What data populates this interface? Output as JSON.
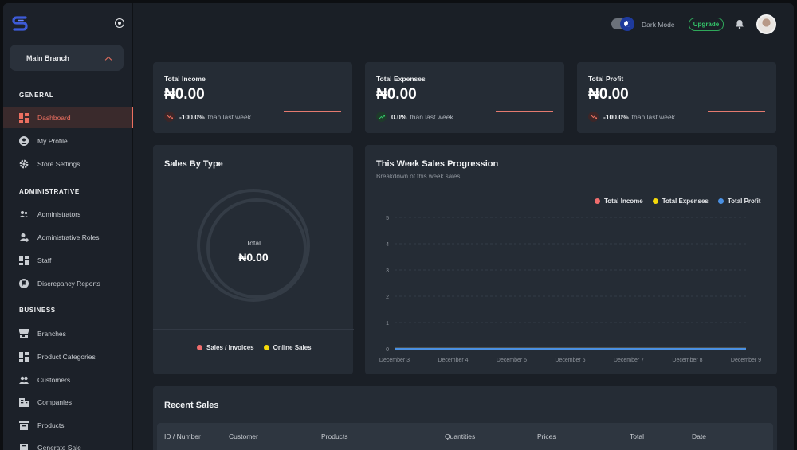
{
  "sidebar": {
    "branch": "Main Branch",
    "sections": [
      {
        "title": "GENERAL",
        "items": [
          {
            "label": "Dashboard",
            "icon": "dashboard-icon",
            "active": true
          },
          {
            "label": "My Profile",
            "icon": "profile-icon"
          },
          {
            "label": "Store Settings",
            "icon": "gear-icon"
          }
        ]
      },
      {
        "title": "ADMINISTRATIVE",
        "items": [
          {
            "label": "Administrators",
            "icon": "users-icon"
          },
          {
            "label": "Administrative Roles",
            "icon": "roles-icon"
          },
          {
            "label": "Staff",
            "icon": "staff-icon"
          },
          {
            "label": "Discrepancy Reports",
            "icon": "report-icon"
          }
        ]
      },
      {
        "title": "BUSINESS",
        "items": [
          {
            "label": "Branches",
            "icon": "store-icon"
          },
          {
            "label": "Product Categories",
            "icon": "categories-icon"
          },
          {
            "label": "Customers",
            "icon": "customers-icon"
          },
          {
            "label": "Companies",
            "icon": "building-icon"
          },
          {
            "label": "Products",
            "icon": "box-icon"
          },
          {
            "label": "Generate Sale",
            "icon": "sale-icon"
          }
        ]
      }
    ]
  },
  "header": {
    "dark_mode_label": "Dark Mode",
    "upgrade_label": "Upgrade"
  },
  "stats": [
    {
      "title": "Total Income",
      "value": "₦0.00",
      "change": "-100.0%",
      "suffix": "than last week",
      "trend": "down"
    },
    {
      "title": "Total Expenses",
      "value": "₦0.00",
      "change": "0.0%",
      "suffix": "than last week",
      "trend": "up"
    },
    {
      "title": "Total Profit",
      "value": "₦0.00",
      "change": "-100.0%",
      "suffix": "than last week",
      "trend": "down"
    }
  ],
  "sales_by_type": {
    "title": "Sales By Type",
    "total_label": "Total",
    "total_value": "₦0.00",
    "legend": [
      {
        "label": "Sales / Invoices",
        "color": "#f06d6d"
      },
      {
        "label": "Online Sales",
        "color": "#f5d90a"
      }
    ]
  },
  "chart_data": {
    "type": "line",
    "title": "This Week Sales Progression",
    "subtitle": "Breakdown of this week sales.",
    "categories": [
      "December 3",
      "December 4",
      "December 5",
      "December 6",
      "December 7",
      "December 8",
      "December 9"
    ],
    "series": [
      {
        "name": "Total Income",
        "color": "#f06d6d",
        "values": [
          0,
          0,
          0,
          0,
          0,
          0,
          0
        ]
      },
      {
        "name": "Total Expenses",
        "color": "#f5d90a",
        "values": [
          0,
          0,
          0,
          0,
          0,
          0,
          0
        ]
      },
      {
        "name": "Total Profit",
        "color": "#4a90e2",
        "values": [
          0,
          0,
          0,
          0,
          0,
          0,
          0
        ]
      }
    ],
    "yticks": [
      "0",
      "1",
      "2",
      "3",
      "4",
      "5"
    ],
    "ylim": [
      0,
      5
    ],
    "grid": true,
    "legend": "top-right"
  },
  "recent_sales": {
    "title": "Recent Sales",
    "columns": [
      "ID / Number",
      "Customer",
      "Products",
      "Quantities",
      "Prices",
      "Total",
      "Date"
    ]
  }
}
